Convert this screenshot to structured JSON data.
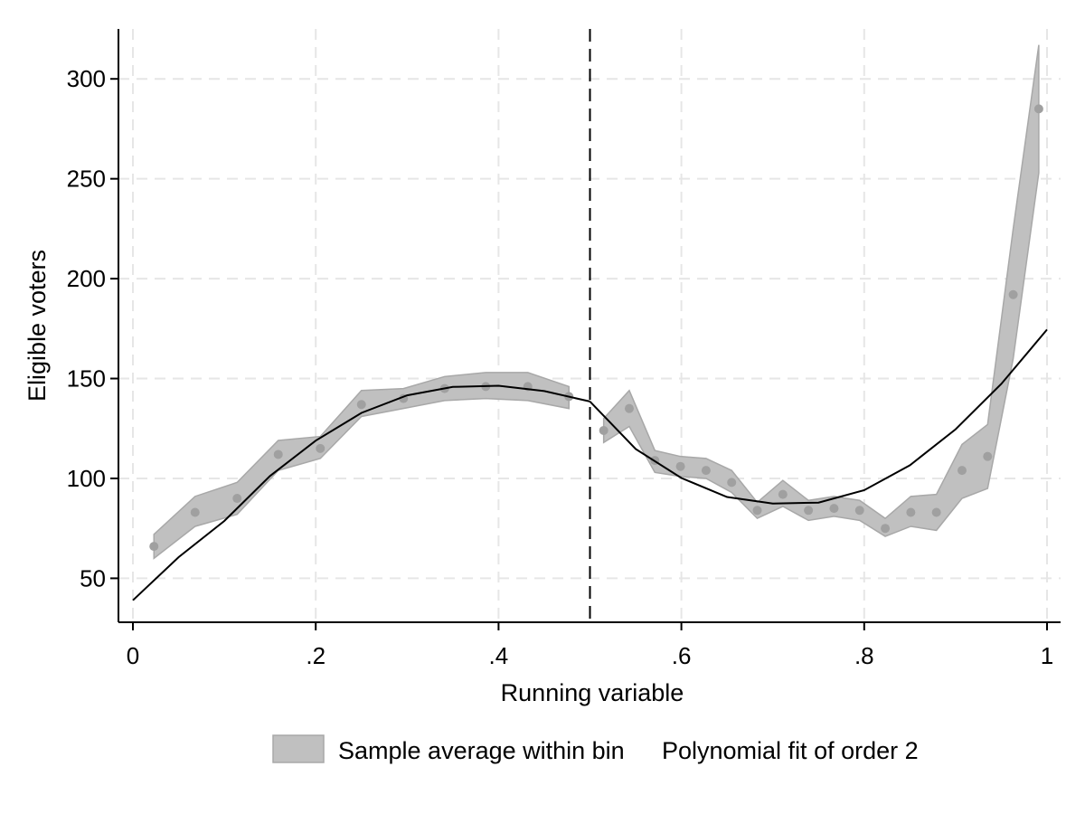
{
  "chart_data": {
    "type": "scatter",
    "xlabel": "Running variable",
    "ylabel": "Eligible voters",
    "xlim": [
      0,
      1
    ],
    "ylim": [
      28,
      325
    ],
    "x_ticks": [
      0,
      0.2,
      0.4,
      0.6,
      0.8,
      1
    ],
    "x_tick_labels": [
      "0",
      ".2",
      ".4",
      ".6",
      ".8",
      "1"
    ],
    "y_ticks": [
      50,
      100,
      150,
      200,
      250,
      300
    ],
    "y_tick_labels": [
      "50",
      "100",
      "150",
      "200",
      "250",
      "300"
    ],
    "grid": true,
    "cutoff": 0.5,
    "legend_position": "bottom",
    "colors": {
      "band": "#c0c0c0",
      "band_edge": "#a8a8a8",
      "points": "#a0a0a0",
      "fit": "#000000",
      "grid": "#e6e6e6",
      "cutoff": "#000000"
    },
    "series": [
      {
        "name": "Sample average within bin",
        "kind": "scatter_band",
        "x": [
          0.023,
          0.068,
          0.114,
          0.159,
          0.205,
          0.25,
          0.296,
          0.341,
          0.386,
          0.432,
          0.477,
          0.515,
          0.543,
          0.571,
          0.599,
          0.627,
          0.655,
          0.683,
          0.711,
          0.739,
          0.767,
          0.795,
          0.823,
          0.851,
          0.879,
          0.907,
          0.935,
          0.963,
          0.991
        ],
        "y": [
          66,
          83,
          90,
          112,
          115,
          137,
          140,
          145,
          146,
          146,
          141,
          124,
          135,
          109,
          106,
          104,
          98,
          84,
          92,
          84,
          85,
          84,
          75,
          83,
          83,
          104,
          111,
          192,
          285
        ],
        "lower": [
          60,
          76,
          82,
          104,
          110,
          131,
          135,
          139,
          140,
          139,
          135,
          118,
          126,
          103,
          101,
          100,
          93,
          80,
          86,
          79,
          81,
          79,
          71,
          76,
          74,
          90,
          95,
          160,
          253
        ],
        "upper": [
          72,
          91,
          98,
          119,
          121,
          144,
          145,
          151,
          153,
          153,
          146,
          130,
          144,
          114,
          111,
          110,
          104,
          88,
          99,
          89,
          91,
          89,
          80,
          91,
          92,
          117,
          127,
          225,
          317
        ]
      },
      {
        "name": "Polynomial fit of order 2",
        "kind": "line",
        "segments": [
          {
            "x": [
              0,
              0.05,
              0.1,
              0.15,
              0.2,
              0.25,
              0.3,
              0.35,
              0.4,
              0.45,
              0.5
            ],
            "y": [
              39,
              60.6,
              78.7,
              101.2,
              118.9,
              132.8,
              141.6,
              145.8,
              146.4,
              143.7,
              138.5
            ]
          },
          {
            "x": [
              0.5,
              0.55,
              0.6,
              0.65,
              0.7,
              0.75,
              0.8,
              0.85,
              0.9,
              0.95,
              1
            ],
            "y": [
              138.5,
              114.7,
              100.2,
              90.7,
              87.4,
              87.9,
              94.1,
              106.6,
              124.6,
              147.3,
              174.5
            ]
          }
        ]
      }
    ]
  }
}
